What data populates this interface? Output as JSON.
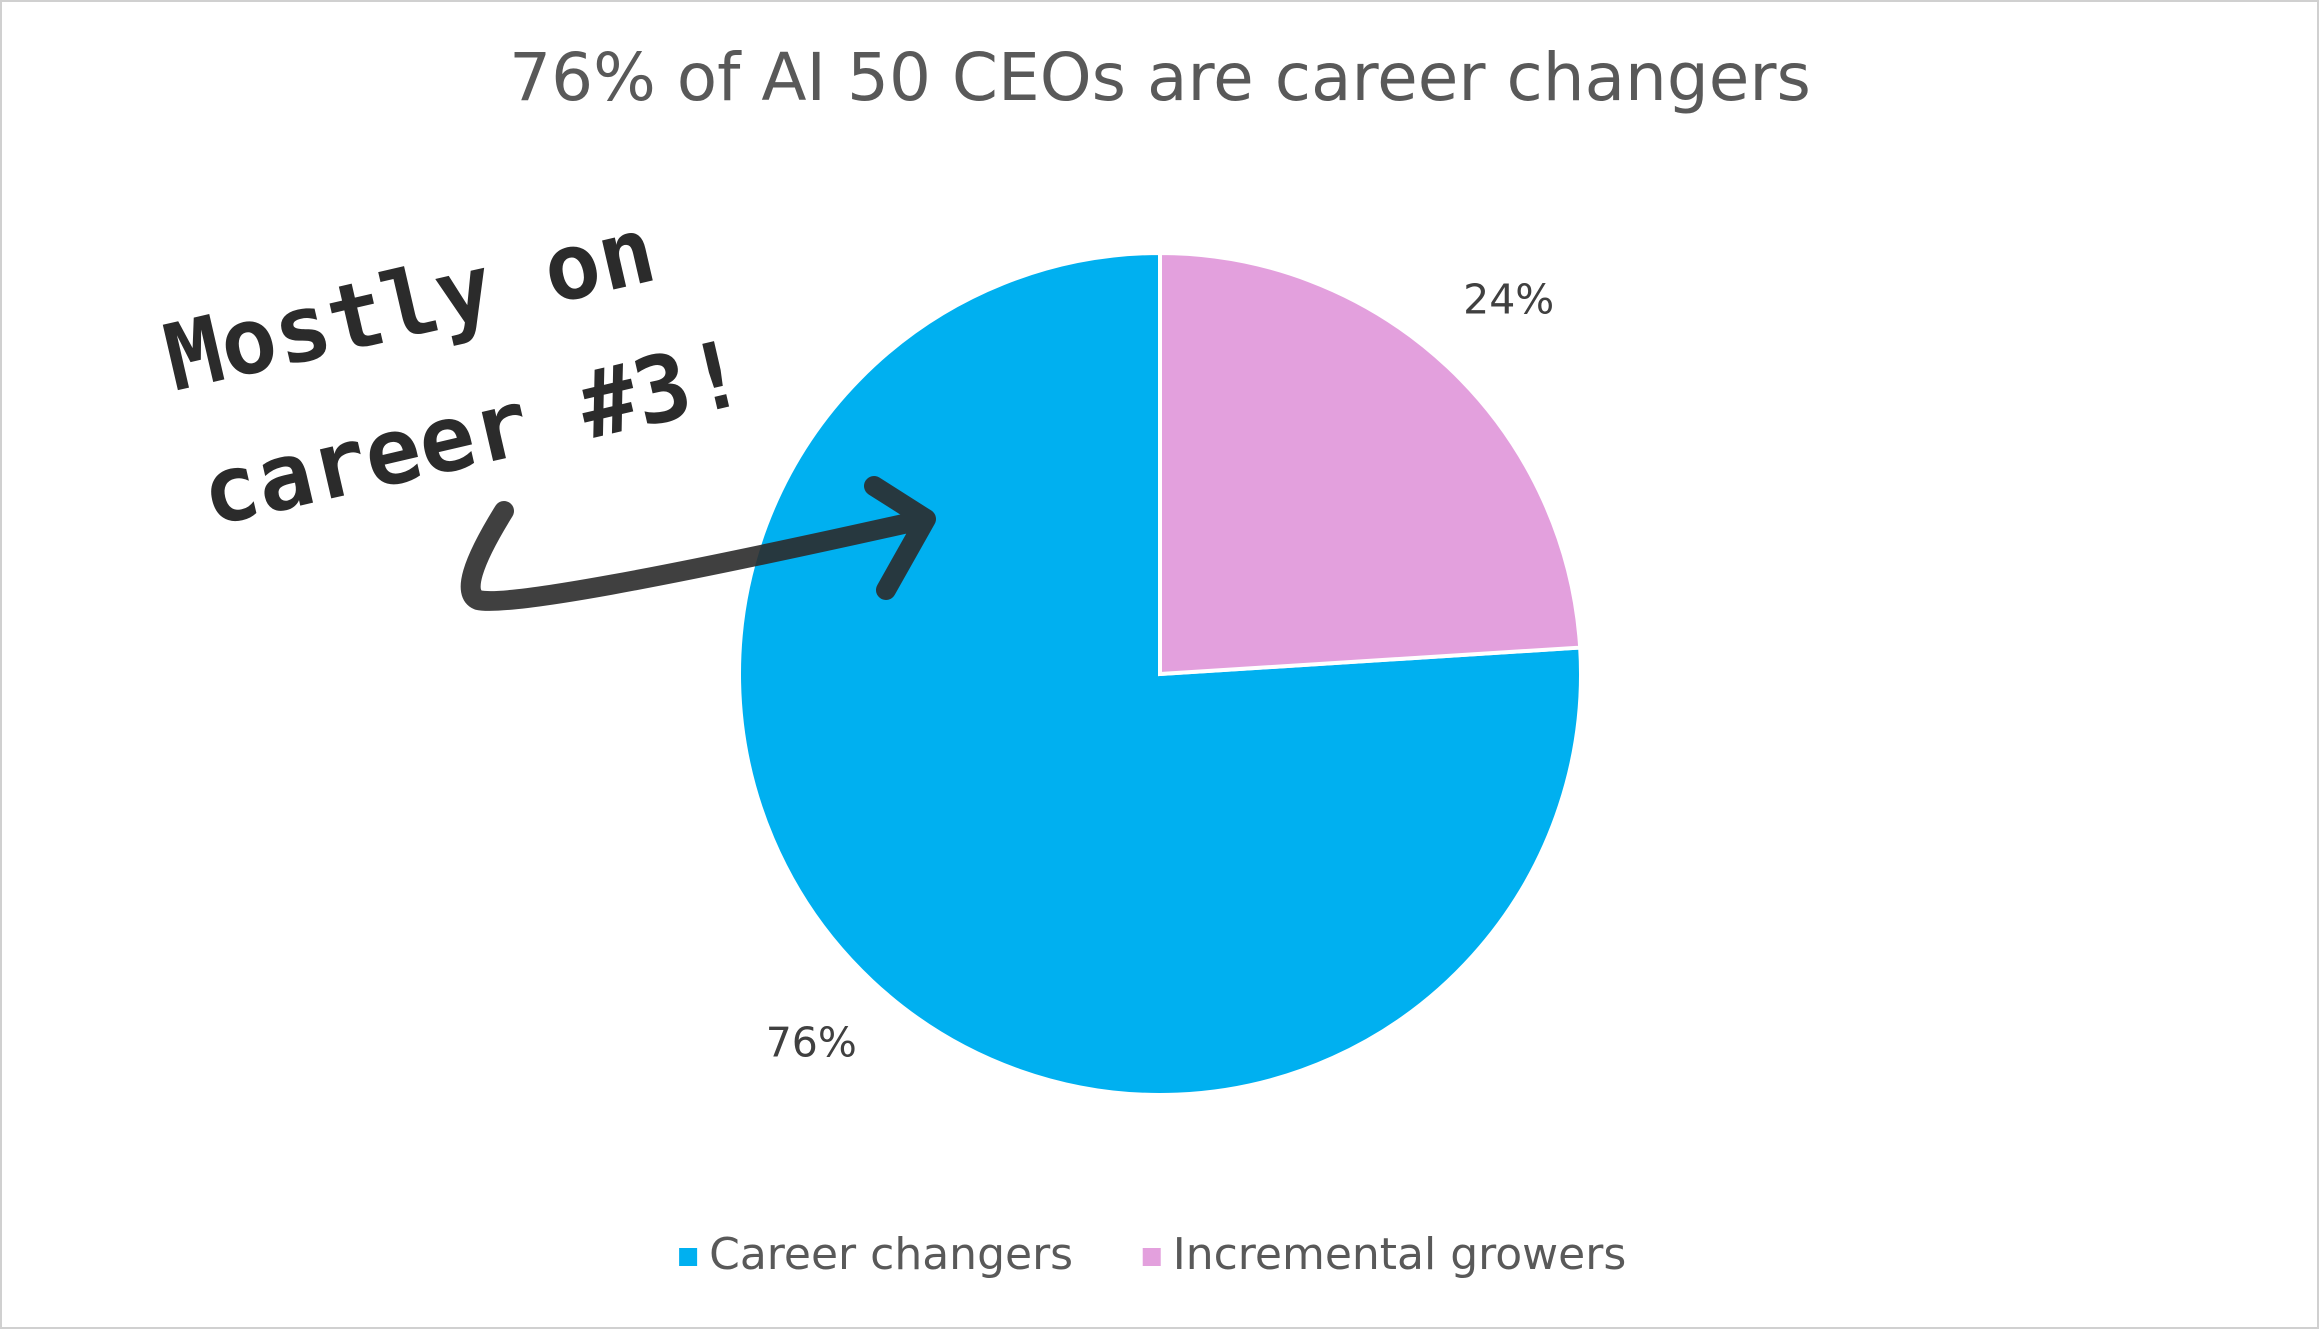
{
  "chart_data": {
    "type": "pie",
    "title": "76% of AI 50 CEOs are career changers",
    "categories": [
      "Career changers",
      "Incremental growers"
    ],
    "values": [
      76,
      24
    ],
    "value_labels": [
      "76%",
      "24%"
    ],
    "colors": [
      "#00b0f0",
      "#e3a0dd"
    ],
    "direction": "counterclockwise",
    "legend": "bottom",
    "annotation": [
      "Mostly on",
      "career #3!"
    ]
  }
}
